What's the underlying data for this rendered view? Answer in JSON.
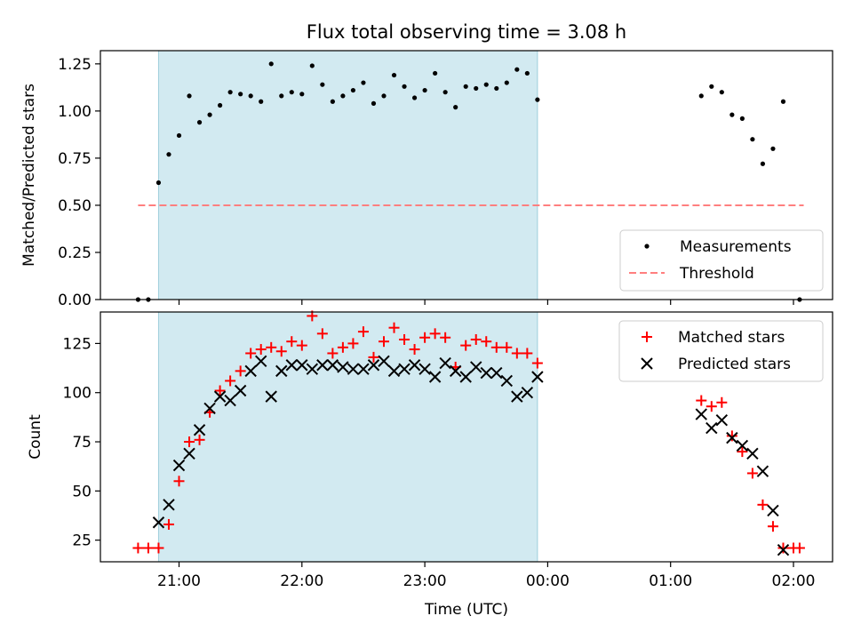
{
  "title": "Flux total observing time = 3.08 h",
  "colors": {
    "shade": "#add8e6",
    "threshold": "#ff7f7f",
    "matched": "#ff0000",
    "predicted": "#000000",
    "measurement": "#000000"
  },
  "chart_data": [
    {
      "type": "scatter",
      "ylabel": "Matched/Predicted stars",
      "ylim": [
        0,
        1.32
      ],
      "yticks": [
        0,
        0.25,
        0.5,
        0.75,
        1.0,
        1.25
      ],
      "ytick_labels": [
        "0.00",
        "0.25",
        "0.50",
        "0.75",
        "1.00",
        "1.25"
      ],
      "shaded_span": [
        "20:50",
        "23:55"
      ],
      "legend": [
        "Measurements",
        "Threshold"
      ],
      "legend_position": "lower-right",
      "threshold": {
        "value": 0.5,
        "x_start": "20:40",
        "x_end": "02:05"
      },
      "measurements": {
        "x": [
          "20:40",
          "20:45",
          "20:50",
          "20:55",
          "21:00",
          "21:05",
          "21:10",
          "21:15",
          "21:20",
          "21:25",
          "21:30",
          "21:35",
          "21:40",
          "21:45",
          "21:50",
          "21:55",
          "22:00",
          "22:05",
          "22:10",
          "22:15",
          "22:20",
          "22:25",
          "22:30",
          "22:35",
          "22:40",
          "22:45",
          "22:50",
          "22:55",
          "23:00",
          "23:05",
          "23:10",
          "23:15",
          "23:20",
          "23:25",
          "23:30",
          "23:35",
          "23:40",
          "23:45",
          "23:50",
          "23:55",
          "01:15",
          "01:20",
          "01:25",
          "01:30",
          "01:35",
          "01:40",
          "01:45",
          "01:50",
          "01:55",
          "02:03"
        ],
        "y": [
          0,
          0,
          0.62,
          0.77,
          0.87,
          1.08,
          0.94,
          0.98,
          1.03,
          1.1,
          1.09,
          1.08,
          1.05,
          1.25,
          1.08,
          1.1,
          1.09,
          1.24,
          1.14,
          1.05,
          1.08,
          1.11,
          1.15,
          1.04,
          1.08,
          1.19,
          1.13,
          1.07,
          1.11,
          1.2,
          1.1,
          1.02,
          1.13,
          1.12,
          1.14,
          1.12,
          1.15,
          1.22,
          1.2,
          1.06,
          1.08,
          1.13,
          1.1,
          0.98,
          0.96,
          0.85,
          0.72,
          0.8,
          1.05,
          0
        ]
      }
    },
    {
      "type": "scatter",
      "xlabel": "Time (UTC)",
      "ylabel": "Count",
      "ylim": [
        14,
        141
      ],
      "yticks": [
        25,
        50,
        75,
        100,
        125
      ],
      "xticks": [
        "21:00",
        "22:00",
        "23:00",
        "00:00",
        "01:00",
        "02:00"
      ],
      "shaded_span": [
        "20:50",
        "23:55"
      ],
      "legend_position": "top-right",
      "series": [
        {
          "name": "Matched stars",
          "marker": "plus",
          "x": [
            "20:40",
            "20:45",
            "20:50",
            "20:55",
            "21:00",
            "21:05",
            "21:10",
            "21:15",
            "21:20",
            "21:25",
            "21:30",
            "21:35",
            "21:40",
            "21:45",
            "21:50",
            "21:55",
            "22:00",
            "22:05",
            "22:10",
            "22:15",
            "22:20",
            "22:25",
            "22:30",
            "22:35",
            "22:40",
            "22:45",
            "22:50",
            "22:55",
            "23:00",
            "23:05",
            "23:10",
            "23:15",
            "23:20",
            "23:25",
            "23:30",
            "23:35",
            "23:40",
            "23:45",
            "23:50",
            "23:55",
            "01:15",
            "01:20",
            "01:25",
            "01:30",
            "01:35",
            "01:40",
            "01:45",
            "01:50",
            "01:55",
            "02:00",
            "02:03"
          ],
          "y": [
            21,
            21,
            21,
            33,
            55,
            75,
            76,
            90,
            101,
            106,
            111,
            120,
            122,
            123,
            121,
            126,
            124,
            139,
            130,
            120,
            123,
            125,
            131,
            118,
            126,
            133,
            127,
            122,
            128,
            130,
            128,
            113,
            124,
            127,
            126,
            123,
            123,
            120,
            120,
            115,
            96,
            93,
            95,
            78,
            70,
            59,
            43,
            32,
            21,
            21,
            21
          ]
        },
        {
          "name": "Predicted stars",
          "marker": "x",
          "x": [
            "20:50",
            "20:55",
            "21:00",
            "21:05",
            "21:10",
            "21:15",
            "21:20",
            "21:25",
            "21:30",
            "21:35",
            "21:40",
            "21:45",
            "21:50",
            "21:55",
            "22:00",
            "22:05",
            "22:10",
            "22:15",
            "22:20",
            "22:25",
            "22:30",
            "22:35",
            "22:40",
            "22:45",
            "22:50",
            "22:55",
            "23:00",
            "23:05",
            "23:10",
            "23:15",
            "23:20",
            "23:25",
            "23:30",
            "23:35",
            "23:40",
            "23:45",
            "23:50",
            "23:55",
            "01:15",
            "01:20",
            "01:25",
            "01:30",
            "01:35",
            "01:40",
            "01:45",
            "01:50",
            "01:55"
          ],
          "y": [
            34,
            43,
            63,
            69,
            81,
            92,
            98,
            96,
            101,
            111,
            116,
            98,
            111,
            114,
            114,
            112,
            114,
            114,
            113,
            112,
            112,
            114,
            116,
            111,
            112,
            114,
            112,
            108,
            115,
            111,
            108,
            113,
            110,
            110,
            106,
            98,
            100,
            108,
            89,
            82,
            86,
            77,
            73,
            69,
            60,
            40,
            20
          ]
        }
      ]
    }
  ]
}
